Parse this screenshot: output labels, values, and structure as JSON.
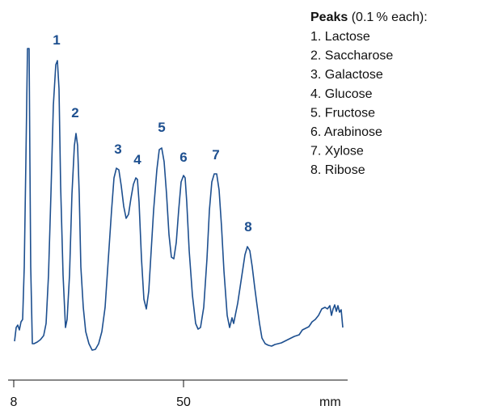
{
  "chart_data": {
    "type": "line",
    "legend_title": "Peaks",
    "legend_subtitle": "(0.1 % each):",
    "legend_items": [
      "1. Lactose",
      "2. Saccharose",
      "3. Galactose",
      "4. Glucose",
      "5. Fructose",
      "6. Arabinose",
      "7. Xylose",
      "8. Ribose"
    ],
    "xlabel": "mm",
    "xlim": [
      6.6,
      90.6
    ],
    "xticks": [
      8,
      50
    ],
    "ylim": [
      0,
      420
    ],
    "series": [
      {
        "color": "#1d4f8f",
        "x": [
          8.2,
          8.6,
          9,
          9.4,
          9.8,
          10.2,
          10.6,
          11,
          11.4,
          11.8,
          12,
          12.2,
          12.6,
          13,
          13.8,
          14.6,
          15.4,
          16,
          16.6,
          17.2,
          17.8,
          18.4,
          18.8,
          19.2,
          19.6,
          20.2,
          20.8,
          21.2,
          21.8,
          22.4,
          23,
          23.4,
          23.8,
          24.2,
          24.6,
          25.2,
          25.8,
          26.6,
          27.4,
          28.2,
          29,
          29.8,
          30.6,
          31.4,
          32.2,
          32.8,
          33.4,
          34,
          34.6,
          35.2,
          35.8,
          36.4,
          37,
          37.6,
          38.2,
          38.6,
          39,
          39.6,
          40.2,
          40.8,
          41.4,
          42,
          42.6,
          43.4,
          44,
          44.6,
          45.2,
          45.8,
          46.4,
          47,
          47.6,
          48.2,
          48.8,
          49.4,
          50,
          50.4,
          50.8,
          51.4,
          52.2,
          53,
          53.6,
          54.2,
          55,
          55.8,
          56.4,
          57,
          57.6,
          58.2,
          58.8,
          59.4,
          60,
          60.8,
          61.4,
          62,
          62.4,
          62.8,
          63.4,
          64,
          64.6,
          65.2,
          65.8,
          66.4,
          67,
          67.6,
          68.2,
          68.8,
          69.4,
          70.2,
          71,
          71.8,
          72.6,
          74.2,
          75.8,
          77.4,
          78.6,
          79.4,
          80.2,
          81,
          81.8,
          82.6,
          83.4,
          84.2,
          85,
          85.6,
          86.2,
          86.6,
          87,
          87.4,
          87.8,
          88.2,
          88.6,
          89,
          89.4
        ],
        "values": [
          48,
          65,
          68,
          62,
          72,
          75,
          140,
          270,
          410,
          410,
          270,
          140,
          45,
          45,
          47,
          50,
          55,
          70,
          130,
          230,
          340,
          390,
          395,
          360,
          240,
          130,
          65,
          75,
          130,
          230,
          290,
          305,
          290,
          230,
          140,
          90,
          60,
          45,
          37,
          38,
          45,
          60,
          90,
          150,
          210,
          250,
          262,
          260,
          240,
          215,
          200,
          205,
          225,
          242,
          250,
          248,
          220,
          150,
          100,
          88,
          110,
          160,
          210,
          260,
          285,
          287,
          270,
          230,
          180,
          152,
          150,
          170,
          210,
          245,
          253,
          250,
          220,
          160,
          105,
          70,
          63,
          65,
          90,
          150,
          210,
          245,
          255,
          255,
          235,
          190,
          135,
          80,
          65,
          77,
          70,
          80,
          95,
          115,
          135,
          155,
          165,
          160,
          140,
          115,
          92,
          70,
          52,
          45,
          43,
          42,
          44,
          46,
          50,
          54,
          56,
          62,
          64,
          66,
          72,
          75,
          80,
          88,
          90,
          88,
          92,
          80,
          88,
          93,
          85,
          92,
          84,
          87,
          65
        ]
      }
    ],
    "annotations": [
      {
        "text": "1",
        "x": 18.6,
        "y": 415
      },
      {
        "text": "2",
        "x": 23.2,
        "y": 325
      },
      {
        "text": "3",
        "x": 33.8,
        "y": 280
      },
      {
        "text": "4",
        "x": 38.6,
        "y": 267
      },
      {
        "text": "5",
        "x": 44.6,
        "y": 307
      },
      {
        "text": "6",
        "x": 50,
        "y": 270
      },
      {
        "text": "7",
        "x": 58,
        "y": 273
      },
      {
        "text": "8",
        "x": 66,
        "y": 184
      }
    ]
  }
}
